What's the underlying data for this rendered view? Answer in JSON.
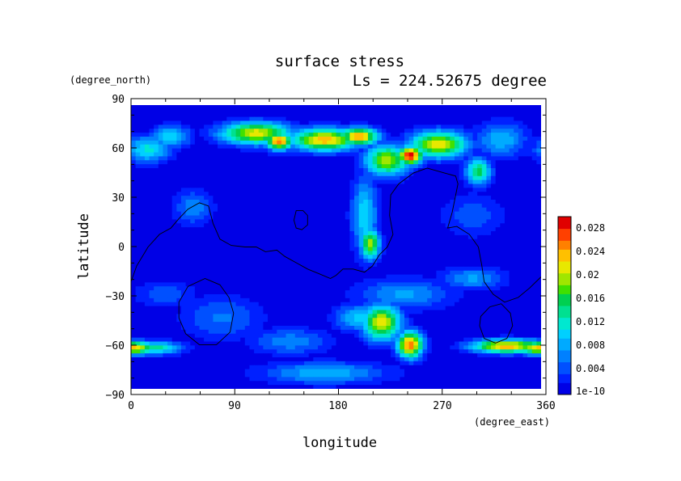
{
  "chart_data": {
    "type": "heatmap",
    "title": "surface stress",
    "subtitle": "Ls = 224.52675 degree",
    "xlabel": "longitude",
    "ylabel": "latitude",
    "x_unit": "(degree_east)",
    "y_unit": "(degree_north)",
    "xlim": [
      0,
      360
    ],
    "ylim": [
      -90,
      90
    ],
    "x_ticks": [
      "0",
      "90",
      "180",
      "270",
      "360"
    ],
    "y_ticks": [
      "90",
      "60",
      "30",
      "0",
      "−30",
      "−60",
      "−90"
    ],
    "colorbar": {
      "labels": [
        "0.028",
        "0.024",
        "0.02",
        "0.016",
        "0.012",
        "0.008",
        "0.004",
        "1e-10"
      ],
      "min": 1e-10,
      "max": 0.03,
      "colors": [
        "#0000e6",
        "#0020ff",
        "#0050ff",
        "#0080ff",
        "#00aaff",
        "#00d0ff",
        "#00e8d0",
        "#00e090",
        "#00d050",
        "#40e000",
        "#a0e600",
        "#e8e800",
        "#ffc000",
        "#ff8000",
        "#ff4000",
        "#e00000",
        "#ffffff"
      ]
    },
    "background_value": 0.0015,
    "stress_features": [
      {
        "lon": 0,
        "lat": -64,
        "value": 0.024,
        "sx": 16,
        "sy": 3
      },
      {
        "lon": 20,
        "lat": -64,
        "value": 0.014,
        "sx": 18,
        "sy": 3
      },
      {
        "lon": 15,
        "lat": 62,
        "value": 0.012,
        "sx": 14,
        "sy": 6
      },
      {
        "lon": 35,
        "lat": 70,
        "value": 0.011,
        "sx": 12,
        "sy": 5
      },
      {
        "lon": 110,
        "lat": 72,
        "value": 0.022,
        "sx": 22,
        "sy": 5
      },
      {
        "lon": 130,
        "lat": 67,
        "value": 0.026,
        "sx": 8,
        "sy": 4
      },
      {
        "lon": 170,
        "lat": 68,
        "value": 0.024,
        "sx": 22,
        "sy": 5
      },
      {
        "lon": 200,
        "lat": 70,
        "value": 0.025,
        "sx": 12,
        "sy": 4
      },
      {
        "lon": 225,
        "lat": 55,
        "value": 0.02,
        "sx": 14,
        "sy": 7
      },
      {
        "lon": 245,
        "lat": 58,
        "value": 0.03,
        "sx": 8,
        "sy": 4
      },
      {
        "lon": 270,
        "lat": 65,
        "value": 0.022,
        "sx": 18,
        "sy": 6
      },
      {
        "lon": 305,
        "lat": 48,
        "value": 0.016,
        "sx": 8,
        "sy": 6
      },
      {
        "lon": 325,
        "lat": 68,
        "value": 0.009,
        "sx": 16,
        "sy": 8
      },
      {
        "lon": 205,
        "lat": 20,
        "value": 0.011,
        "sx": 8,
        "sy": 18
      },
      {
        "lon": 210,
        "lat": 2,
        "value": 0.02,
        "sx": 6,
        "sy": 7
      },
      {
        "lon": 55,
        "lat": 25,
        "value": 0.007,
        "sx": 12,
        "sy": 8
      },
      {
        "lon": 240,
        "lat": -30,
        "value": 0.008,
        "sx": 30,
        "sy": 7
      },
      {
        "lon": 220,
        "lat": -48,
        "value": 0.022,
        "sx": 12,
        "sy": 8
      },
      {
        "lon": 245,
        "lat": -62,
        "value": 0.026,
        "sx": 8,
        "sy": 6
      },
      {
        "lon": 200,
        "lat": -45,
        "value": 0.01,
        "sx": 15,
        "sy": 6
      },
      {
        "lon": 300,
        "lat": -20,
        "value": 0.008,
        "sx": 20,
        "sy": 5
      },
      {
        "lon": 330,
        "lat": -63,
        "value": 0.024,
        "sx": 22,
        "sy": 3
      },
      {
        "lon": 350,
        "lat": -63,
        "value": 0.018,
        "sx": 14,
        "sy": 3
      },
      {
        "lon": 80,
        "lat": -45,
        "value": 0.006,
        "sx": 25,
        "sy": 10
      },
      {
        "lon": 140,
        "lat": -60,
        "value": 0.007,
        "sx": 25,
        "sy": 6
      },
      {
        "lon": 170,
        "lat": -80,
        "value": 0.009,
        "sx": 40,
        "sy": 5
      },
      {
        "lon": 30,
        "lat": -30,
        "value": 0.005,
        "sx": 20,
        "sy": 6
      },
      {
        "lon": 300,
        "lat": 20,
        "value": 0.005,
        "sx": 20,
        "sy": 10
      }
    ],
    "contours": [
      {
        "name": "continent-outline",
        "closed": false,
        "points": [
          [
            0,
            -22
          ],
          [
            5,
            -12
          ],
          [
            15,
            0
          ],
          [
            25,
            8
          ],
          [
            35,
            12
          ],
          [
            42,
            18
          ],
          [
            50,
            24
          ],
          [
            60,
            28
          ],
          [
            68,
            26
          ],
          [
            72,
            15
          ],
          [
            78,
            5
          ],
          [
            88,
            1
          ],
          [
            100,
            0
          ],
          [
            110,
            0
          ],
          [
            118,
            -3
          ],
          [
            128,
            -2
          ],
          [
            135,
            -6
          ],
          [
            145,
            -10
          ],
          [
            155,
            -14
          ],
          [
            165,
            -17
          ],
          [
            175,
            -20
          ],
          [
            180,
            -18
          ],
          [
            186,
            -14
          ],
          [
            195,
            -14
          ],
          [
            205,
            -16
          ],
          [
            212,
            -12
          ],
          [
            218,
            -5
          ],
          [
            225,
            0
          ],
          [
            230,
            8
          ],
          [
            227,
            20
          ],
          [
            228,
            33
          ],
          [
            235,
            40
          ],
          [
            248,
            47
          ],
          [
            260,
            50
          ],
          [
            275,
            47
          ],
          [
            285,
            45
          ],
          [
            287,
            40
          ],
          [
            282,
            22
          ],
          [
            278,
            12
          ],
          [
            286,
            13
          ],
          [
            297,
            8
          ],
          [
            305,
            0
          ],
          [
            308,
            -12
          ],
          [
            310,
            -22
          ],
          [
            318,
            -30
          ],
          [
            328,
            -35
          ],
          [
            340,
            -32
          ],
          [
            350,
            -26
          ],
          [
            360,
            -19
          ]
        ]
      },
      {
        "name": "small-island-outline",
        "closed": true,
        "points": [
          [
            145,
            23
          ],
          [
            151,
            23
          ],
          [
            155,
            20
          ],
          [
            155,
            14
          ],
          [
            150,
            11
          ],
          [
            145,
            12
          ],
          [
            143,
            17
          ]
        ]
      },
      {
        "name": "south-crater-outline",
        "closed": true,
        "points": [
          [
            42,
            -35
          ],
          [
            50,
            -25
          ],
          [
            65,
            -20
          ],
          [
            78,
            -24
          ],
          [
            86,
            -32
          ],
          [
            90,
            -42
          ],
          [
            87,
            -54
          ],
          [
            75,
            -62
          ],
          [
            60,
            -62
          ],
          [
            48,
            -55
          ],
          [
            42,
            -45
          ]
        ]
      },
      {
        "name": "southeast-crater-outline",
        "closed": true,
        "points": [
          [
            307,
            -44
          ],
          [
            315,
            -38
          ],
          [
            325,
            -36
          ],
          [
            333,
            -42
          ],
          [
            335,
            -50
          ],
          [
            330,
            -58
          ],
          [
            320,
            -61
          ],
          [
            310,
            -58
          ],
          [
            306,
            -50
          ]
        ]
      }
    ]
  }
}
